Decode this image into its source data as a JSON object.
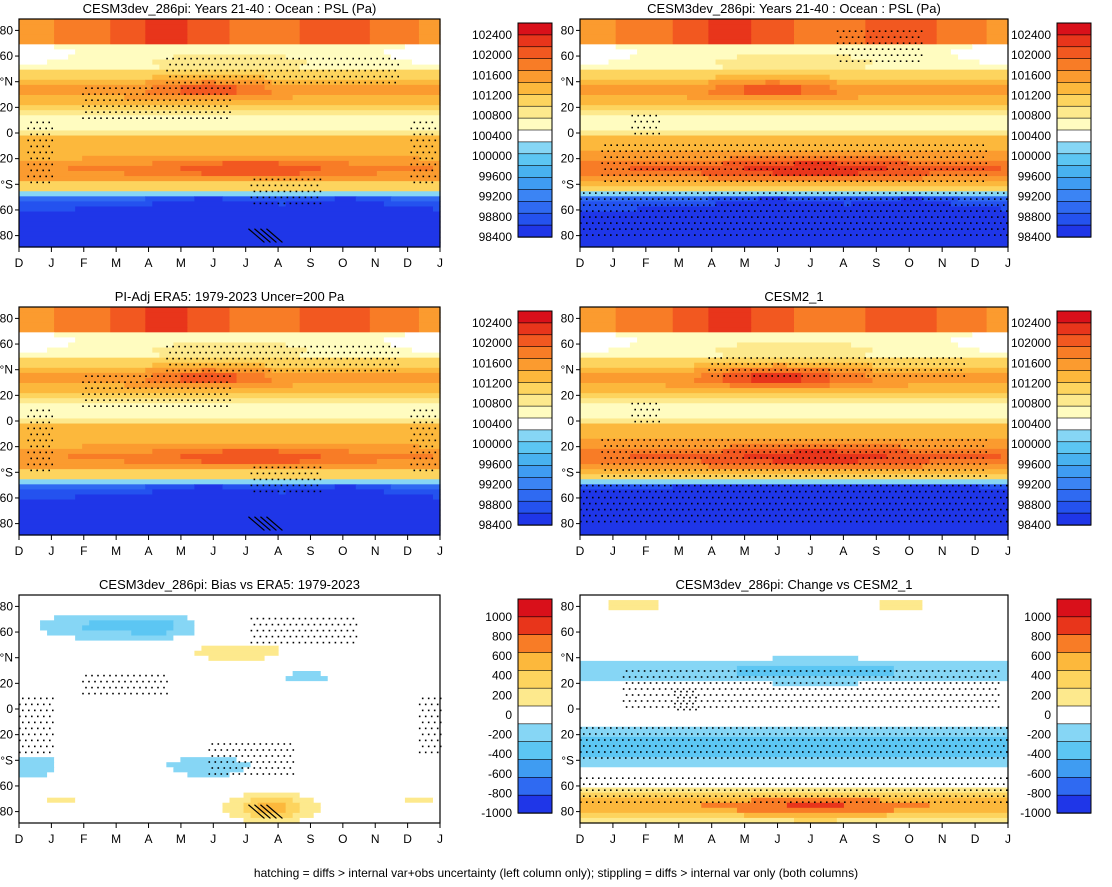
{
  "footnote": "hatching = diffs > internal var+obs uncertainty (left column only); stippling = diffs > internal var only (both columns)",
  "colors": {
    "psl_scale": [
      "#1f36e8",
      "#2452ef",
      "#2f6af2",
      "#3b84f4",
      "#3f9cf2",
      "#48b2f0",
      "#5cc6f3",
      "#86d6f5",
      "#ffffff",
      "#fffcc0",
      "#fde98d",
      "#fdd45e",
      "#fcb83c",
      "#fb9b2f",
      "#f87c26",
      "#f25820",
      "#e8351b",
      "#d9101a"
    ],
    "diff_scale": [
      "#1f36e8",
      "#2f6af2",
      "#3f9cf2",
      "#5cc6f3",
      "#86d6f5",
      "#ffffff",
      "#fde98d",
      "#fdd45e",
      "#fcb83c",
      "#f87c26",
      "#e8351b",
      "#d9101a"
    ]
  },
  "chart_data": [
    {
      "panel": "top-left",
      "type": "heatmap",
      "title": "CESM3dev_286pi: Years 21-40 : Ocean : PSL (Pa)",
      "x_ticks": [
        "D",
        "J",
        "F",
        "M",
        "A",
        "M",
        "J",
        "J",
        "A",
        "S",
        "O",
        "N",
        "D",
        "J"
      ],
      "y_ticks": [
        "80",
        "60",
        "°N",
        "20",
        "0",
        "20",
        "°S",
        "60",
        "80"
      ],
      "colorbar_labels": [
        "102400",
        "102000",
        "101600",
        "101200",
        "100800",
        "100400",
        "100000",
        "99600",
        "99200",
        "98800",
        "98400"
      ],
      "scale": "psl",
      "stippling": true,
      "hatching": true
    },
    {
      "panel": "top-right",
      "type": "heatmap",
      "title": "CESM3dev_286pi: Years 21-40 : Ocean : PSL (Pa)",
      "x_ticks": [
        "D",
        "J",
        "F",
        "M",
        "A",
        "M",
        "J",
        "J",
        "A",
        "S",
        "O",
        "N",
        "D",
        "J"
      ],
      "y_ticks": [
        "80",
        "60",
        "°N",
        "20",
        "0",
        "20",
        "°S",
        "60",
        "80"
      ],
      "colorbar_labels": [
        "102400",
        "102000",
        "101600",
        "101200",
        "100800",
        "100400",
        "100000",
        "99600",
        "99200",
        "98800",
        "98400"
      ],
      "scale": "psl",
      "stippling": true,
      "hatching": false
    },
    {
      "panel": "middle-left",
      "type": "heatmap",
      "title": "PI-Adj ERA5: 1979-2023 Uncer=200 Pa",
      "x_ticks": [
        "D",
        "J",
        "F",
        "M",
        "A",
        "M",
        "J",
        "J",
        "A",
        "S",
        "O",
        "N",
        "D",
        "J"
      ],
      "y_ticks": [
        "80",
        "60",
        "°N",
        "20",
        "0",
        "20",
        "°S",
        "60",
        "80"
      ],
      "colorbar_labels": [
        "102400",
        "102000",
        "101600",
        "101200",
        "100800",
        "100400",
        "100000",
        "99600",
        "99200",
        "98800",
        "98400"
      ],
      "scale": "psl",
      "stippling": true,
      "hatching": true
    },
    {
      "panel": "middle-right",
      "type": "heatmap",
      "title": "CESM2_1",
      "x_ticks": [
        "D",
        "J",
        "F",
        "M",
        "A",
        "M",
        "J",
        "J",
        "A",
        "S",
        "O",
        "N",
        "D",
        "J"
      ],
      "y_ticks": [
        "80",
        "60",
        "°N",
        "20",
        "0",
        "20",
        "°S",
        "60",
        "80"
      ],
      "colorbar_labels": [
        "102400",
        "102000",
        "101600",
        "101200",
        "100800",
        "100400",
        "100000",
        "99600",
        "99200",
        "98800",
        "98400"
      ],
      "scale": "psl",
      "stippling": true,
      "hatching": false
    },
    {
      "panel": "bottom-left",
      "type": "heatmap",
      "title": "CESM3dev_286pi: Bias vs ERA5: 1979-2023",
      "x_ticks": [
        "D",
        "J",
        "F",
        "M",
        "A",
        "M",
        "J",
        "J",
        "A",
        "S",
        "O",
        "N",
        "D",
        "J"
      ],
      "y_ticks": [
        "80",
        "60",
        "°N",
        "20",
        "0",
        "20",
        "°S",
        "60",
        "80"
      ],
      "colorbar_labels": [
        "1000",
        "800",
        "600",
        "400",
        "200",
        "0",
        "-200",
        "-400",
        "-600",
        "-800",
        "-1000"
      ],
      "scale": "diff",
      "stippling": true,
      "hatching": true
    },
    {
      "panel": "bottom-right",
      "type": "heatmap",
      "title": "CESM3dev_286pi: Change vs CESM2_1",
      "x_ticks": [
        "D",
        "J",
        "F",
        "M",
        "A",
        "M",
        "J",
        "J",
        "A",
        "S",
        "O",
        "N",
        "D",
        "J"
      ],
      "y_ticks": [
        "80",
        "60",
        "°N",
        "20",
        "0",
        "20",
        "°S",
        "60",
        "80"
      ],
      "colorbar_labels": [
        "1000",
        "800",
        "600",
        "400",
        "200",
        "0",
        "-200",
        "-400",
        "-600",
        "-800",
        "-1000"
      ],
      "scale": "diff",
      "stippling": true,
      "hatching": false
    }
  ]
}
